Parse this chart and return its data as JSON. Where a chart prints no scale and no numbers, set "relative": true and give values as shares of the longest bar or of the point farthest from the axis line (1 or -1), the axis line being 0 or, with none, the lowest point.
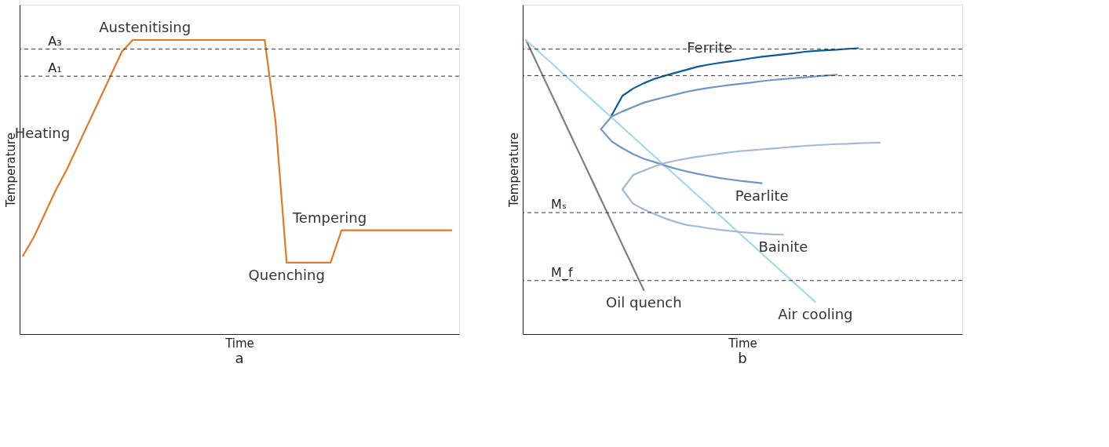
{
  "chart_data": [
    {
      "type": "line",
      "relative": true,
      "title": "a",
      "xlabel": "Time",
      "ylabel": "Temperature",
      "grid": false,
      "legend": false,
      "categories": [
        null,
        null,
        null,
        null,
        null,
        null,
        null,
        null,
        null,
        null,
        null,
        null,
        null,
        null,
        null,
        null,
        null,
        null,
        null,
        null,
        null,
        null,
        null,
        null,
        null,
        null,
        null,
        null,
        null,
        null,
        null,
        null,
        null,
        null,
        null,
        null,
        null,
        null,
        null,
        null
      ],
      "series": [
        {
          "name": "Heating",
          "color": "#e07b24",
          "values": [
            0.266,
            0.33,
            0.41,
            0.49,
            0.56,
            0.64,
            0.72,
            0.8,
            0.88,
            0.96,
            1,
            null,
            null,
            null,
            null,
            null,
            null,
            null,
            null,
            null,
            null,
            null,
            null,
            null,
            null,
            null,
            null,
            null,
            null,
            null,
            null,
            null,
            null,
            null,
            null,
            null,
            null,
            null,
            null,
            null
          ]
        },
        {
          "name": "Austenitising",
          "color": "#e07b24",
          "values": [
            null,
            null,
            null,
            null,
            null,
            null,
            null,
            null,
            null,
            null,
            1,
            1,
            1,
            1,
            1,
            1,
            1,
            1,
            1,
            1,
            1,
            1,
            1,
            null,
            null,
            null,
            null,
            null,
            null,
            null,
            null,
            null,
            null,
            null,
            null,
            null,
            null,
            null,
            null,
            null
          ]
        },
        {
          "name": "Quenching",
          "color": "#e07b24",
          "values": [
            null,
            null,
            null,
            null,
            null,
            null,
            null,
            null,
            null,
            null,
            null,
            null,
            null,
            null,
            null,
            null,
            null,
            null,
            null,
            null,
            null,
            null,
            1,
            0.72,
            0.243,
            null,
            null,
            null,
            null,
            null,
            null,
            null,
            null,
            null,
            null,
            null,
            null,
            null,
            null,
            null
          ]
        },
        {
          "name": "Tempering",
          "color": "#e07b24",
          "values": [
            null,
            null,
            null,
            null,
            null,
            null,
            null,
            null,
            null,
            null,
            null,
            null,
            null,
            null,
            null,
            null,
            null,
            null,
            null,
            null,
            null,
            null,
            null,
            null,
            0.243,
            0.243,
            0.243,
            0.243,
            0.243,
            0.353,
            0.353,
            0.353,
            0.353,
            0.353,
            0.353,
            0.353,
            0.353,
            0.353,
            0.353,
            0.353
          ]
        }
      ],
      "ref_lines": [
        {
          "axis": "y",
          "value": 0.969,
          "label": "A₃",
          "line_style": "dashed"
        },
        {
          "axis": "y",
          "value": 0.877,
          "label": "A₁",
          "line_style": "dashed"
        }
      ]
    },
    {
      "type": "line",
      "relative": true,
      "title": "b",
      "xlabel": "Time",
      "ylabel": "Temperature",
      "grid": false,
      "legend": false,
      "categories": [
        null,
        null,
        null,
        null,
        null,
        null,
        null,
        null,
        null,
        null,
        null,
        null,
        null,
        null,
        null,
        null,
        null,
        null,
        null,
        null,
        null,
        null,
        null,
        null,
        null,
        null,
        null,
        null,
        null,
        null,
        null,
        null,
        null,
        null,
        null,
        null,
        null,
        null,
        null,
        null,
        null
      ],
      "series": [
        {
          "name": "Oil quench",
          "color": "#7d7a8e",
          "values": [
            1,
            0.923,
            0.845,
            0.768,
            0.69,
            0.613,
            0.536,
            0.458,
            0.381,
            0.303,
            0.226,
            0.149,
            null,
            null,
            null,
            null,
            null,
            null,
            null,
            null,
            null,
            null,
            null,
            null,
            null,
            null,
            null,
            null,
            null,
            null,
            null,
            null,
            null,
            null,
            null,
            null,
            null,
            null,
            null,
            null,
            null
          ]
        },
        {
          "name": "Air cooling",
          "color": "#a5d8ef",
          "values": [
            1,
            0.967,
            0.934,
            0.901,
            0.868,
            0.835,
            0.802,
            0.769,
            0.736,
            0.703,
            0.67,
            0.637,
            0.604,
            0.571,
            0.538,
            0.505,
            0.472,
            0.439,
            0.406,
            0.373,
            0.34,
            0.307,
            0.274,
            0.241,
            0.208,
            0.175,
            0.142,
            0.109,
            null,
            null,
            null,
            null,
            null,
            null,
            null,
            null,
            null,
            null,
            null,
            null,
            null
          ]
        },
        {
          "name": "Ferrite",
          "color": "#0c5a9a",
          "values": [
            null,
            null,
            null,
            null,
            null,
            null,
            null,
            null,
            0.744,
            0.81,
            0.835,
            0.853,
            0.868,
            0.879,
            0.889,
            0.899,
            0.909,
            0.916,
            0.922,
            0.927,
            0.932,
            0.938,
            0.943,
            0.947,
            0.951,
            0.955,
            0.96,
            0.963,
            0.965,
            0.967,
            0.97,
            0.972,
            null,
            null,
            null,
            null,
            null,
            null,
            null,
            null,
            null
          ]
        },
        {
          "color": "#6f95c6",
          "values": [
            null,
            null,
            null,
            null,
            null,
            null,
            null,
            0.697,
            0.74,
            0.757,
            0.772,
            0.787,
            0.797,
            0.806,
            0.815,
            0.824,
            0.831,
            0.837,
            0.842,
            0.847,
            0.851,
            0.855,
            0.86,
            0.864,
            0.867,
            0.87,
            0.873,
            0.876,
            0.879,
            0.882,
            null,
            null,
            null,
            null,
            null,
            null,
            null,
            null,
            null,
            null,
            null
          ]
        },
        {
          "name": "Pearlite",
          "color": "#6f95c6",
          "values": [
            null,
            null,
            null,
            null,
            null,
            null,
            null,
            0.697,
            0.655,
            0.632,
            0.612,
            0.596,
            0.585,
            0.573,
            0.562,
            0.553,
            0.545,
            0.538,
            0.531,
            0.526,
            0.521,
            0.517,
            0.513,
            null,
            null,
            null,
            null,
            null,
            null,
            null,
            null,
            null,
            null,
            null,
            null,
            null,
            null,
            null,
            null,
            null,
            null
          ]
        },
        {
          "color": "#a3b9d8",
          "values": [
            null,
            null,
            null,
            null,
            null,
            null,
            null,
            null,
            null,
            0.492,
            0.541,
            0.556,
            0.57,
            0.582,
            0.59,
            0.597,
            0.603,
            0.608,
            0.613,
            0.618,
            0.622,
            0.625,
            0.628,
            0.631,
            0.634,
            0.637,
            0.64,
            0.642,
            0.644,
            0.646,
            0.647,
            0.649,
            0.65,
            0.651,
            null,
            null,
            null,
            null,
            null,
            null,
            null
          ]
        },
        {
          "name": "Bainite",
          "color": "#a3b9d8",
          "values": [
            null,
            null,
            null,
            null,
            null,
            null,
            null,
            null,
            null,
            0.492,
            0.443,
            0.424,
            0.408,
            0.393,
            0.381,
            0.371,
            0.366,
            0.36,
            0.355,
            0.351,
            0.347,
            0.344,
            0.341,
            0.339,
            0.338,
            null,
            null,
            null,
            null,
            null,
            null,
            null,
            null,
            null,
            null,
            null,
            null,
            null,
            null,
            null,
            null
          ]
        }
      ],
      "ref_lines": [
        {
          "axis": "y",
          "value": 0.969,
          "line_style": "dashed"
        },
        {
          "axis": "y",
          "value": 0.879,
          "line_style": "dashed"
        },
        {
          "axis": "y",
          "value": 0.413,
          "label": "Mₛ",
          "line_style": "dashed"
        },
        {
          "axis": "y",
          "value": 0.182,
          "label": "M_f",
          "line_style": "dashed"
        }
      ]
    }
  ]
}
